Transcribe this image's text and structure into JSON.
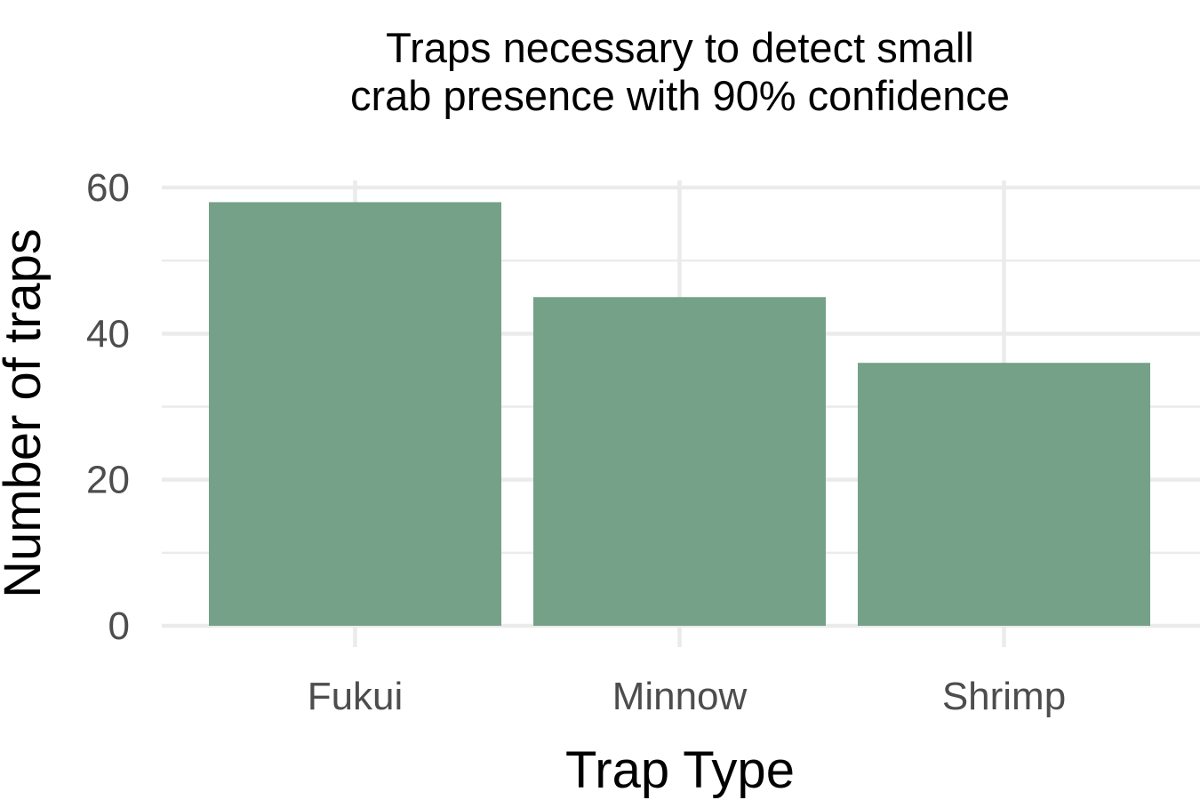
{
  "chart_data": {
    "type": "bar",
    "title": [
      "Traps necessary to detect small",
      "crab presence with 90% confidence"
    ],
    "xlabel": "Trap Type",
    "ylabel": "Number of traps",
    "categories": [
      "Fukui",
      "Minnow",
      "Shrimp"
    ],
    "values": [
      58,
      45,
      36
    ],
    "ylim": [
      0,
      60
    ],
    "yticks": [
      0,
      20,
      40,
      60
    ],
    "ytick_labels": [
      "0",
      "20",
      "40",
      "60"
    ],
    "grid": true,
    "legend": "none",
    "colors": {
      "bar": "#74a188",
      "grid": "#ebebeb",
      "tick_text": "#4d4d4d",
      "text": "#000000",
      "background": "#ffffff"
    }
  }
}
